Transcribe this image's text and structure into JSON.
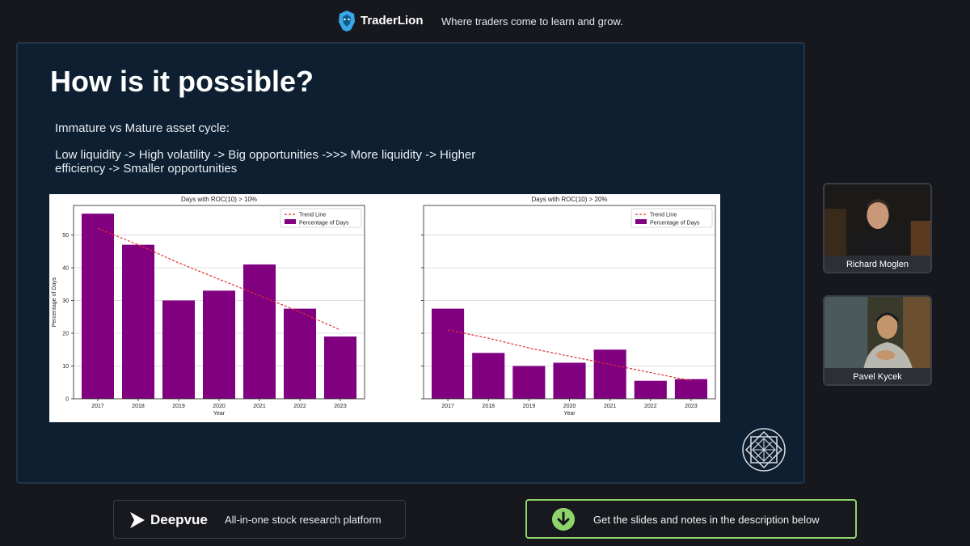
{
  "header": {
    "brand": "TraderLion",
    "tagline": "Where traders come to learn and grow."
  },
  "slide": {
    "title": "How is it possible?",
    "subtitle": "Immature vs Mature asset cycle:",
    "body": "Low liquidity -> High volatility -> Big opportunities ->>> More liquidity -> Higher efficiency -> Smaller opportunities"
  },
  "chart_data": [
    {
      "type": "bar",
      "title": "Days with ROC(10) > 10%",
      "xlabel": "Year",
      "ylabel": "Percentage of Days",
      "categories": [
        "2017",
        "2018",
        "2019",
        "2020",
        "2021",
        "2022",
        "2023"
      ],
      "series": [
        {
          "name": "Percentage of Days",
          "values": [
            56.5,
            47,
            30,
            33,
            41,
            27.5,
            19
          ]
        },
        {
          "name": "Trend Line",
          "type": "line",
          "values": [
            52,
            47,
            41.5,
            36.5,
            31.5,
            26.5,
            21
          ]
        }
      ],
      "yticks": [
        0,
        10,
        20,
        30,
        40,
        50
      ],
      "ylim": [
        0,
        59
      ],
      "grid": true,
      "legend": "top-right",
      "colors": {
        "bar": "#800080",
        "trend": "#e03030"
      }
    },
    {
      "type": "bar",
      "title": "Days with ROC(10) > 20%",
      "xlabel": "Year",
      "ylabel": "",
      "categories": [
        "2017",
        "2018",
        "2019",
        "2020",
        "2021",
        "2022",
        "2023"
      ],
      "series": [
        {
          "name": "Percentage of Days",
          "values": [
            27.5,
            14,
            10,
            11,
            15,
            5.5,
            6
          ]
        },
        {
          "name": "Trend Line",
          "type": "line",
          "values": [
            21,
            18.5,
            15.5,
            13,
            10.5,
            8,
            5.5
          ]
        }
      ],
      "yticks": [],
      "ylim": [
        0,
        59
      ],
      "grid": true,
      "legend": "top-right",
      "colors": {
        "bar": "#800080",
        "trend": "#e03030"
      }
    }
  ],
  "participants": [
    {
      "name": "Richard Moglen"
    },
    {
      "name": "Pavel Kycek"
    }
  ],
  "footer": {
    "left_brand": "Deepvue",
    "left_tagline": "All-in-one stock research platform",
    "right_text": "Get the slides and notes in the description below",
    "accent": "#8fd46a"
  }
}
